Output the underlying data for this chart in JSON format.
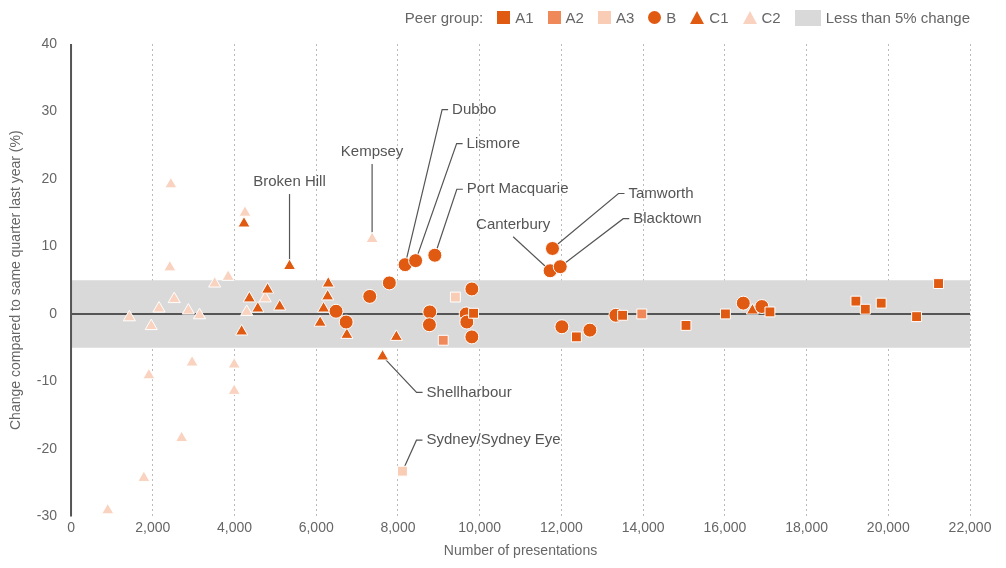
{
  "chart_data": {
    "type": "scatter",
    "xlabel": "Number of presentations",
    "ylabel": "Change compared to same quarter last year (%)",
    "legend_title": "Peer group:",
    "legend": "top right",
    "xlim": [
      0,
      22000
    ],
    "xticks": [
      0,
      {
        "value": 2000,
        "label": "2,000"
      },
      {
        "value": 4000,
        "label": "4,000"
      },
      {
        "value": 6000,
        "label": "6,000"
      },
      {
        "value": 8000,
        "label": "8,000"
      },
      {
        "value": 10000,
        "label": "10,000"
      },
      {
        "value": 12000,
        "label": "12,000"
      },
      {
        "value": 14000,
        "label": "14,000"
      },
      {
        "value": 16000,
        "label": "16,000"
      },
      {
        "value": 18000,
        "label": "18,000"
      },
      {
        "value": 20000,
        "label": "20,000"
      },
      {
        "value": 22000,
        "label": "22,000"
      }
    ],
    "ylim": [
      -30,
      40
    ],
    "yticks": [
      -30,
      -20,
      -10,
      0,
      10,
      20,
      30,
      40
    ],
    "grid": "x",
    "bands": [
      {
        "axis": "y",
        "from": -5,
        "to": 5,
        "label": "Less than 5% change",
        "color": "#d9d9d9"
      }
    ],
    "series": [
      {
        "name": "A1",
        "color": "#e05a12",
        "marker": "square",
        "x": [
          9851,
          12368,
          13498,
          15050,
          16015,
          17104,
          19208,
          19438,
          19827,
          20693,
          21230
        ],
        "values": [
          0.1,
          -3.4,
          -0.2,
          -1.7,
          0.0,
          0.3,
          1.9,
          0.7,
          1.6,
          -0.4,
          4.5
        ]
      },
      {
        "name": "A2",
        "color": "#f0895a",
        "marker": "square",
        "x": [
          9109,
          13968
        ],
        "values": [
          -3.9,
          0.0
        ]
      },
      {
        "name": "A3",
        "color": "#f9cdb5",
        "marker": "square",
        "x": [
          9406,
          8111
        ],
        "values": [
          2.5,
          -23.3
        ]
      },
      {
        "name": "B",
        "color": "#e05a12",
        "marker": "circle",
        "x": [
          6485,
          6733,
          7310,
          7790,
          8176,
          8433,
          8903,
          8780,
          8770,
          9809,
          9670,
          9686,
          9809,
          11782,
          11725,
          11972,
          12012,
          12698,
          13334,
          16452,
          16906
        ],
        "values": [
          0.4,
          -1.2,
          2.6,
          4.6,
          7.3,
          7.9,
          8.7,
          0.3,
          -1.6,
          3.7,
          0.0,
          -1.2,
          -3.4,
          9.7,
          6.4,
          7.0,
          -1.9,
          -2.4,
          -0.2,
          1.6,
          1.1
        ]
      },
      {
        "name": "C1",
        "color": "#e05a12",
        "marker": "triangle",
        "x": [
          4233,
          5347,
          4175,
          4364,
          4571,
          4810,
          5107,
          6295,
          6280,
          6180,
          6097,
          6750,
          7962,
          7624,
          16675
        ],
        "values": [
          13.4,
          7.1,
          -2.6,
          2.3,
          0.8,
          3.6,
          1.1,
          4.5,
          2.6,
          0.8,
          -1.3,
          -3.1,
          -3.4,
          -6.3,
          0.5
        ]
      },
      {
        "name": "C2",
        "color": "#f9d3c0",
        "marker": "triangle",
        "x": [
          2443,
          4257,
          2418,
          2525,
          2153,
          1428,
          1963,
          2871,
          3144,
          3515,
          3845,
          4299,
          4752,
          2962,
          3993,
          1906,
          3993,
          2706,
          1782,
          899,
          7368
        ],
        "values": [
          19.2,
          15.0,
          6.9,
          2.2,
          0.8,
          -0.5,
          -1.8,
          0.5,
          -0.2,
          4.5,
          5.5,
          0.3,
          2.3,
          -7.2,
          -7.5,
          -9.1,
          -11.4,
          -18.4,
          -24.3,
          -29.1,
          11.1
        ]
      }
    ],
    "annotations": [
      {
        "text": "Dubbo",
        "x": 8176,
        "y": 7.3
      },
      {
        "text": "Lismore",
        "x": 8433,
        "y": 7.9
      },
      {
        "text": "Kempsey",
        "x": 7368,
        "y": 11.1
      },
      {
        "text": "Broken Hill",
        "x": 5347,
        "y": 7.1
      },
      {
        "text": "Port Macquarie",
        "x": 8903,
        "y": 8.7
      },
      {
        "text": "Tamworth",
        "x": 11782,
        "y": 9.7
      },
      {
        "text": "Canterbury",
        "x": 11725,
        "y": 6.4
      },
      {
        "text": "Blacktown",
        "x": 11972,
        "y": 7.0
      },
      {
        "text": "Shellharbour",
        "x": 7624,
        "y": -6.3
      },
      {
        "text": "Sydney/Sydney Eye",
        "x": 8111,
        "y": -23.3
      }
    ]
  }
}
